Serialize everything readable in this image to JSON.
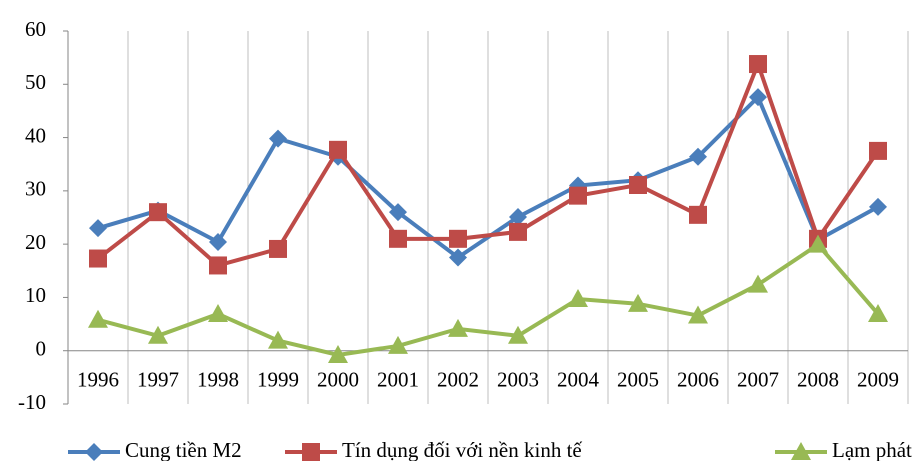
{
  "chart_data": {
    "type": "line",
    "categories": [
      "1996",
      "1997",
      "1998",
      "1999",
      "2000",
      "2001",
      "2002",
      "2003",
      "2004",
      "2005",
      "2006",
      "2007",
      "2008",
      "2009"
    ],
    "series": [
      {
        "name": "Cung tiền M2",
        "color": "#4a7ebb",
        "marker": "diamond",
        "values": [
          23,
          26.3,
          20.4,
          39.8,
          36.4,
          26,
          17.5,
          25.1,
          31,
          32,
          36.4,
          47.6,
          20.8,
          27
        ]
      },
      {
        "name": "Tín dụng đối với nền kinh tế",
        "color": "#be4b48",
        "marker": "square",
        "values": [
          17.3,
          26,
          16,
          19.1,
          37.7,
          21,
          21,
          22.3,
          29.1,
          31.1,
          25.5,
          53.8,
          21,
          37.5
        ]
      },
      {
        "name": "Lạm phát",
        "color": "#98b954",
        "marker": "triangle",
        "values": [
          5.8,
          2.8,
          6.9,
          1.9,
          -0.8,
          0.9,
          4.1,
          2.8,
          9.7,
          8.8,
          6.6,
          12.4,
          19.9,
          6.9
        ]
      }
    ],
    "ylim": [
      -10,
      60
    ],
    "yticks": [
      -10,
      0,
      10,
      20,
      30,
      40,
      50,
      60
    ],
    "legend": "bottom"
  }
}
